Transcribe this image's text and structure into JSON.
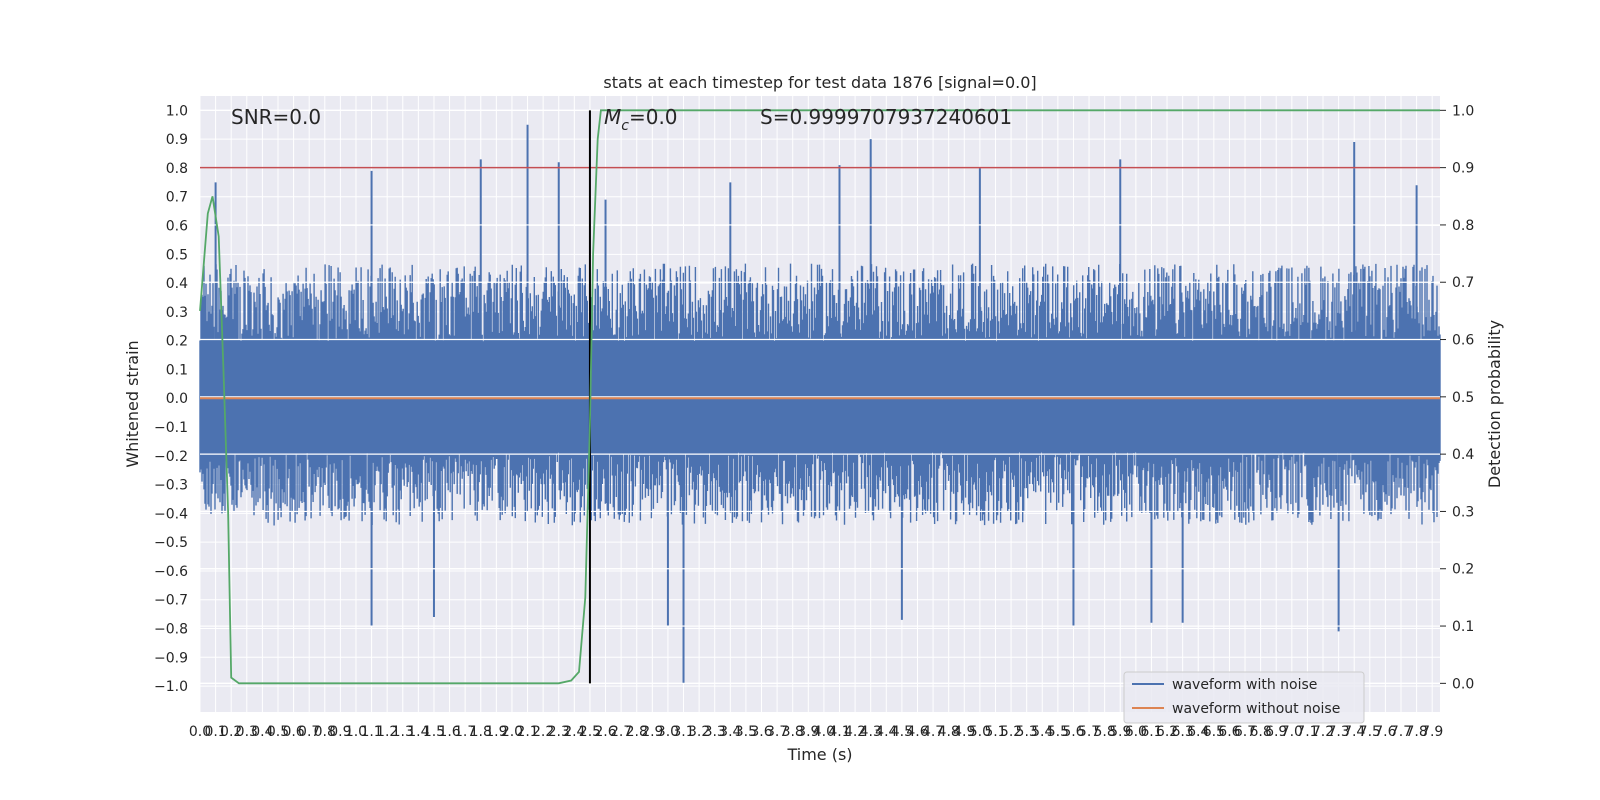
{
  "chart_data": {
    "type": "line",
    "title": "stats at each timestep for test data 1876 [signal=0.0]",
    "xlabel": "Time (s)",
    "ylabel_left": "Whitened strain",
    "ylabel_right": "Detection probability",
    "annotations": {
      "snr": "SNR=0.0",
      "mc_symbol": "M",
      "mc_subscript": "c",
      "mc_value": "=0.0",
      "s": "S=0.9999707937240601"
    },
    "xlim": [
      0.0,
      7.95
    ],
    "ylim_left": [
      -1.09,
      1.05
    ],
    "ylim_right": [
      -0.05,
      1.025
    ],
    "x_ticks": [
      0.0,
      0.1,
      0.2,
      0.3,
      0.4,
      0.5,
      0.6,
      0.7,
      0.8,
      0.9,
      1.0,
      1.1,
      1.2,
      1.3,
      1.4,
      1.5,
      1.6,
      1.7,
      1.8,
      1.9,
      2.0,
      2.1,
      2.2,
      2.3,
      2.4,
      2.5,
      2.6,
      2.7,
      2.8,
      2.9,
      3.0,
      3.1,
      3.2,
      3.3,
      3.4,
      3.5,
      3.6,
      3.7,
      3.8,
      3.9,
      4.0,
      4.1,
      4.2,
      4.3,
      4.4,
      4.5,
      4.6,
      4.7,
      4.8,
      4.9,
      5.0,
      5.1,
      5.2,
      5.3,
      5.4,
      5.5,
      5.6,
      5.7,
      5.8,
      5.9,
      6.0,
      6.1,
      6.2,
      6.3,
      6.4,
      6.5,
      6.6,
      6.7,
      6.8,
      6.9,
      7.0,
      7.1,
      7.2,
      7.3,
      7.4,
      7.5,
      7.6,
      7.7,
      7.8,
      7.9
    ],
    "y_ticks_left": [
      1.0,
      0.9,
      0.8,
      0.7,
      0.6,
      0.5,
      0.4,
      0.3,
      0.2,
      0.1,
      0.0,
      -0.1,
      -0.2,
      -0.3,
      -0.4,
      -0.5,
      -0.6,
      -0.7,
      -0.8,
      -0.9,
      -1.0
    ],
    "y_ticks_right": [
      1.0,
      0.9,
      0.8,
      0.7,
      0.6,
      0.5,
      0.4,
      0.3,
      0.2,
      0.1,
      0.0
    ],
    "grid": true,
    "legend_position": "lower-right",
    "series": [
      {
        "name": "waveform with noise",
        "color": "#4c72b0",
        "axis": "left",
        "typical_upper": 0.36,
        "typical_lower": -0.34,
        "peaks_up": [
          [
            0.1,
            0.75
          ],
          [
            1.1,
            0.79
          ],
          [
            1.8,
            0.83
          ],
          [
            2.1,
            0.95
          ],
          [
            2.3,
            0.82
          ],
          [
            2.6,
            0.69
          ],
          [
            3.4,
            0.75
          ],
          [
            4.1,
            0.81
          ],
          [
            4.3,
            0.9
          ],
          [
            5.0,
            0.8
          ],
          [
            5.9,
            0.83
          ],
          [
            7.4,
            0.89
          ],
          [
            7.8,
            0.74
          ]
        ],
        "peaks_down": [
          [
            1.1,
            -0.79
          ],
          [
            1.5,
            -0.76
          ],
          [
            3.1,
            -0.99
          ],
          [
            3.0,
            -0.79
          ],
          [
            4.5,
            -0.77
          ],
          [
            5.6,
            -0.79
          ],
          [
            6.1,
            -0.78
          ],
          [
            6.3,
            -0.78
          ],
          [
            7.3,
            -0.81
          ]
        ]
      },
      {
        "name": "waveform without noise",
        "color": "#dd8452",
        "axis": "left",
        "constant": 0.0
      },
      {
        "name": "detection probability",
        "color": "#55a868",
        "axis": "right",
        "x": [
          0.0,
          0.05,
          0.08,
          0.12,
          0.15,
          0.18,
          0.2,
          0.25,
          0.3,
          0.4,
          0.6,
          0.8,
          1.0,
          1.5,
          1.8,
          2.0,
          2.2,
          2.3,
          2.38,
          2.43,
          2.47,
          2.5,
          2.52,
          2.55,
          2.57,
          2.6,
          7.95
        ],
        "y": [
          0.65,
          0.82,
          0.85,
          0.78,
          0.55,
          0.3,
          0.01,
          0.0,
          0.0,
          0.0,
          0.0,
          0.0,
          0.0,
          0.0,
          0.0,
          0.0,
          0.0,
          0.0,
          0.005,
          0.02,
          0.15,
          0.45,
          0.75,
          0.95,
          1.0,
          1.0,
          1.0
        ]
      }
    ],
    "threshold_line": {
      "color": "#c44e52",
      "value": 0.9,
      "axis": "right"
    },
    "vertical_marker": {
      "color": "#000000",
      "x": 2.5
    }
  }
}
